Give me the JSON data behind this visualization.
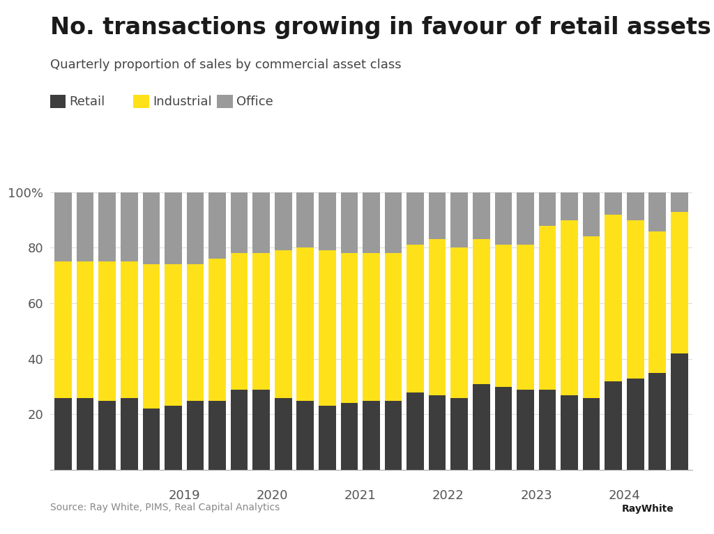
{
  "title": "No. transactions growing in favour of retail assets",
  "subtitle": "Quarterly proportion of sales by commercial asset class",
  "source": "Source: Ray White, PIMS, Real Capital Analytics",
  "legend_labels": [
    "Retail",
    "Industrial",
    "Office"
  ],
  "colors": {
    "retail": "#3d3d3d",
    "industrial": "#FFE11A",
    "office": "#9a9a9a",
    "background": "#FFFFFF",
    "raywhite_box": "#FFE11A",
    "grid": "#dddddd",
    "axis_text": "#555555",
    "title_color": "#1a1a1a",
    "subtitle_color": "#444444",
    "source_color": "#888888"
  },
  "retail": [
    26,
    26,
    25,
    26,
    22,
    23,
    25,
    25,
    29,
    29,
    26,
    25,
    23,
    24,
    25,
    25,
    28,
    27,
    26,
    31,
    30,
    29,
    29,
    27,
    26,
    32,
    33,
    35,
    42
  ],
  "industrial": [
    49,
    49,
    50,
    49,
    52,
    51,
    49,
    51,
    49,
    49,
    53,
    55,
    56,
    54,
    53,
    53,
    53,
    56,
    54,
    52,
    51,
    52,
    59,
    63,
    58,
    60,
    57,
    51,
    51
  ],
  "office": [
    25,
    25,
    25,
    25,
    26,
    26,
    26,
    24,
    22,
    22,
    21,
    20,
    21,
    22,
    22,
    22,
    19,
    17,
    20,
    17,
    19,
    19,
    12,
    10,
    16,
    8,
    10,
    14,
    7
  ],
  "year_ticks": {
    "2019": 5,
    "2020": 9,
    "2021": 13,
    "2022": 17,
    "2023": 21,
    "2024": 25
  },
  "bar_width": 0.78,
  "title_fontsize": 24,
  "subtitle_fontsize": 13,
  "legend_fontsize": 13,
  "ytick_fontsize": 13,
  "xtick_fontsize": 13,
  "source_fontsize": 10
}
